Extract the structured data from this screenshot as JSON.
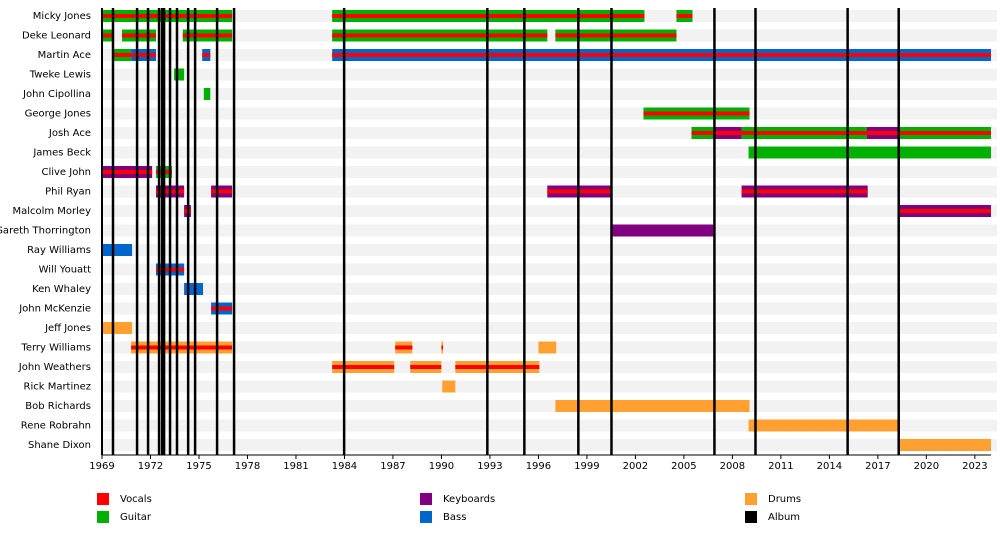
{
  "chart_data": {
    "type": "timeline",
    "xlim": [
      1969,
      2024
    ],
    "xticks": [
      1969,
      1972,
      1975,
      1978,
      1981,
      1984,
      1987,
      1990,
      1993,
      1996,
      1999,
      2002,
      2005,
      2008,
      2011,
      2014,
      2017,
      2020,
      2023
    ],
    "roles": [
      {
        "name": "Vocals",
        "color": "#ff0000"
      },
      {
        "name": "Guitar",
        "color": "#00b000"
      },
      {
        "name": "Keyboards",
        "color": "#800080"
      },
      {
        "name": "Bass",
        "color": "#0066cc"
      },
      {
        "name": "Drums",
        "color": "#ffa030"
      },
      {
        "name": "Album",
        "color": "#000000"
      }
    ],
    "album_color": "#000000",
    "albums": [
      1969.68,
      1971.17,
      1971.85,
      1972.53,
      1972.72,
      1972.84,
      1973.21,
      1973.64,
      1974.33,
      1974.76,
      1976.12,
      1977.17,
      1983.98,
      1992.84,
      1995.13,
      1998.47,
      2000.52,
      2006.89,
      2009.43,
      2015.13,
      2018.29
    ],
    "members": [
      {
        "name": "Micky Jones",
        "spans": [
          {
            "start": 1969,
            "end": 1977.05,
            "role": "Guitar",
            "stripe": "Vocals"
          },
          {
            "start": 1983.24,
            "end": 2002.56,
            "role": "Guitar",
            "stripe": "Vocals"
          },
          {
            "start": 2004.54,
            "end": 2005.53,
            "role": "Guitar",
            "stripe": "Vocals"
          }
        ]
      },
      {
        "name": "Deke Leonard",
        "spans": [
          {
            "start": 1969,
            "end": 1969.7,
            "role": "Guitar",
            "stripe": "Vocals"
          },
          {
            "start": 1970.24,
            "end": 1972.34,
            "role": "Guitar",
            "stripe": "Vocals"
          },
          {
            "start": 1974.0,
            "end": 1977.05,
            "role": "Guitar",
            "stripe": "Vocals"
          },
          {
            "start": 1983.24,
            "end": 1996.55,
            "role": "Guitar",
            "stripe": "Vocals"
          },
          {
            "start": 1997.05,
            "end": 2004.54,
            "role": "Guitar",
            "stripe": "Vocals"
          }
        ]
      },
      {
        "name": "Martin Ace",
        "spans": [
          {
            "start": 1969.68,
            "end": 1970.8,
            "role": "Guitar",
            "stripe": "Vocals"
          },
          {
            "start": 1970.8,
            "end": 1972.34,
            "role": "Bass",
            "stripe": "Vocals"
          },
          {
            "start": 1975.2,
            "end": 1975.7,
            "role": "Bass",
            "stripe": "Vocals"
          },
          {
            "start": 1983.24,
            "end": 2024,
            "role": "Bass",
            "stripe": "Vocals"
          }
        ]
      },
      {
        "name": "Tweke Lewis",
        "spans": [
          {
            "start": 1973.46,
            "end": 1974.08,
            "role": "Guitar"
          }
        ]
      },
      {
        "name": "John Cipollina",
        "spans": [
          {
            "start": 1975.3,
            "end": 1975.7,
            "role": "Guitar"
          }
        ]
      },
      {
        "name": "George Jones",
        "spans": [
          {
            "start": 2002.5,
            "end": 2009.06,
            "role": "Guitar",
            "stripe": "Vocals"
          }
        ]
      },
      {
        "name": "Josh Ace",
        "spans": [
          {
            "start": 2005.47,
            "end": 2006.83,
            "role": "Guitar",
            "stripe": "Vocals"
          },
          {
            "start": 2006.83,
            "end": 2008.57,
            "role": "Keyboards",
            "stripe": "Vocals"
          },
          {
            "start": 2008.57,
            "end": 2016.31,
            "role": "Guitar",
            "stripe": "Vocals"
          },
          {
            "start": 2016.31,
            "end": 2018.35,
            "role": "Keyboards",
            "stripe": "Vocals"
          },
          {
            "start": 2018.35,
            "end": 2024,
            "role": "Guitar",
            "stripe": "Vocals"
          }
        ]
      },
      {
        "name": "James Beck",
        "spans": [
          {
            "start": 2009.0,
            "end": 2024,
            "role": "Guitar"
          }
        ]
      },
      {
        "name": "Clive John",
        "spans": [
          {
            "start": 1969,
            "end": 1972.1,
            "role": "Keyboards",
            "stripe": "Vocals"
          },
          {
            "start": 1972.34,
            "end": 1973.33,
            "role": "Guitar",
            "stripe": "Vocals"
          }
        ]
      },
      {
        "name": "Phil Ryan",
        "spans": [
          {
            "start": 1972.34,
            "end": 1974.08,
            "role": "Keyboards",
            "stripe": "Vocals"
          },
          {
            "start": 1975.75,
            "end": 1977.05,
            "role": "Keyboards",
            "stripe": "Vocals"
          },
          {
            "start": 1996.55,
            "end": 2000.52,
            "role": "Keyboards",
            "stripe": "Vocals"
          },
          {
            "start": 2008.57,
            "end": 2016.37,
            "role": "Keyboards",
            "stripe": "Vocals"
          }
        ]
      },
      {
        "name": "Malcolm Morley",
        "spans": [
          {
            "start": 1974.08,
            "end": 1974.5,
            "role": "Keyboards",
            "stripe": "Vocals"
          },
          {
            "start": 2018.35,
            "end": 2024,
            "role": "Keyboards",
            "stripe": "Vocals"
          }
        ]
      },
      {
        "name": "Gareth Thorrington",
        "spans": [
          {
            "start": 2000.52,
            "end": 2006.9,
            "role": "Keyboards"
          }
        ]
      },
      {
        "name": "Ray Williams",
        "spans": [
          {
            "start": 1969,
            "end": 1970.86,
            "role": "Bass"
          }
        ]
      },
      {
        "name": "Will Youatt",
        "spans": [
          {
            "start": 1972.34,
            "end": 1974.08,
            "role": "Bass",
            "stripe": "Vocals"
          }
        ]
      },
      {
        "name": "Ken Whaley",
        "spans": [
          {
            "start": 1974.08,
            "end": 1975.25,
            "role": "Bass"
          }
        ]
      },
      {
        "name": "John McKenzie",
        "spans": [
          {
            "start": 1975.75,
            "end": 1977.05,
            "role": "Bass",
            "stripe": "Vocals"
          }
        ]
      },
      {
        "name": "Jeff Jones",
        "spans": [
          {
            "start": 1969,
            "end": 1970.86,
            "role": "Drums"
          }
        ]
      },
      {
        "name": "Terry Williams",
        "spans": [
          {
            "start": 1970.8,
            "end": 1977.05,
            "role": "Drums",
            "stripe": "Vocals"
          },
          {
            "start": 1987.14,
            "end": 1988.2,
            "role": "Drums",
            "stripe": "Vocals"
          },
          {
            "start": 1990.0,
            "end": 1990.1,
            "role": "Drums",
            "stripe": "Vocals"
          },
          {
            "start": 1996.0,
            "end": 1997.1,
            "role": "Drums"
          }
        ]
      },
      {
        "name": "John Weathers",
        "spans": [
          {
            "start": 1983.24,
            "end": 1987.08,
            "role": "Drums",
            "stripe": "Vocals"
          },
          {
            "start": 1988.07,
            "end": 1989.99,
            "role": "Drums",
            "stripe": "Vocals"
          },
          {
            "start": 1990.86,
            "end": 1996.06,
            "role": "Drums",
            "stripe": "Vocals"
          }
        ]
      },
      {
        "name": "Rick Martinez",
        "spans": [
          {
            "start": 1990.05,
            "end": 1990.86,
            "role": "Drums"
          }
        ]
      },
      {
        "name": "Bob Richards",
        "spans": [
          {
            "start": 1997.05,
            "end": 2009.06,
            "role": "Drums"
          }
        ]
      },
      {
        "name": "Rene Robrahn",
        "spans": [
          {
            "start": 2009.0,
            "end": 2018.35,
            "role": "Drums"
          }
        ]
      },
      {
        "name": "Shane Dixon",
        "spans": [
          {
            "start": 2018.29,
            "end": 2024,
            "role": "Drums"
          }
        ]
      }
    ]
  }
}
